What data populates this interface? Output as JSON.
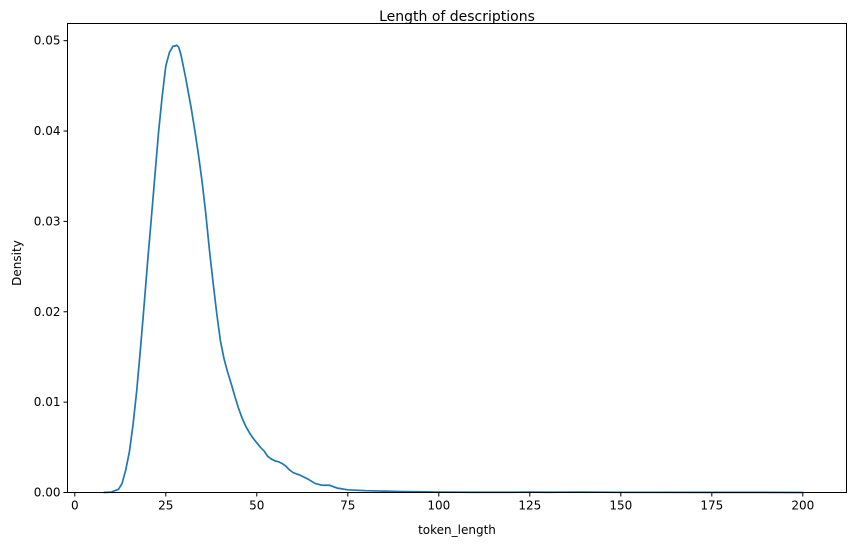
{
  "chart_data": {
    "type": "line",
    "title": "Length of descriptions",
    "xlabel": "token_length",
    "ylabel": "Density",
    "xlim": [
      -2,
      212
    ],
    "ylim": [
      0,
      0.0519
    ],
    "xticks": [
      0,
      25,
      50,
      75,
      100,
      125,
      150,
      175,
      200
    ],
    "xtick_labels": [
      "0",
      "25",
      "50",
      "75",
      "100",
      "125",
      "150",
      "175",
      "200"
    ],
    "yticks": [
      0,
      0.01,
      0.02,
      0.03,
      0.04,
      0.05
    ],
    "ytick_labels": [
      "0.00",
      "0.01",
      "0.02",
      "0.03",
      "0.04",
      "0.05"
    ],
    "grid": false,
    "line_color": "#1f77b4",
    "series": [
      {
        "x": [
          8,
          10,
          12,
          13,
          14,
          15,
          16,
          17,
          18,
          19,
          20,
          21,
          22,
          23,
          24,
          25,
          26,
          27,
          27.5,
          28,
          28.5,
          29,
          29.5,
          30,
          30.5,
          31,
          32,
          33,
          34,
          35,
          36,
          37,
          38,
          38.5,
          39,
          40,
          41,
          42,
          43,
          44,
          45,
          46,
          47,
          48,
          49,
          50,
          51,
          52,
          53,
          54,
          55,
          56,
          57,
          58,
          59,
          60,
          62,
          64,
          66,
          68,
          70,
          72,
          75,
          80,
          85,
          90,
          95,
          100,
          110,
          120,
          125,
          130,
          140,
          150,
          160,
          170,
          180,
          190,
          200
        ],
        "y": [
          0.0,
          5e-05,
          0.00035,
          0.001,
          0.0025,
          0.0045,
          0.0075,
          0.0112,
          0.0157,
          0.0205,
          0.0255,
          0.0302,
          0.035,
          0.0398,
          0.0438,
          0.0472,
          0.0487,
          0.0494,
          0.0494,
          0.0495,
          0.0493,
          0.0487,
          0.0478,
          0.0468,
          0.0458,
          0.0447,
          0.0425,
          0.04,
          0.0373,
          0.0343,
          0.0308,
          0.0268,
          0.0232,
          0.0215,
          0.0198,
          0.0168,
          0.0148,
          0.0133,
          0.012,
          0.0106,
          0.0093,
          0.0082,
          0.0073,
          0.0066,
          0.006,
          0.0055,
          0.005,
          0.0046,
          0.004,
          0.0037,
          0.0035,
          0.0034,
          0.0032,
          0.0029,
          0.0025,
          0.0022,
          0.0019,
          0.0015,
          0.001,
          0.0008,
          0.0008,
          0.0005,
          0.0003,
          0.0002,
          0.00015,
          0.0001,
          8e-05,
          5e-05,
          3e-05,
          3e-05,
          5e-05,
          3e-05,
          5e-05,
          2e-05,
          2e-05,
          1e-05,
          1e-05,
          1e-05,
          0.0
        ]
      }
    ]
  }
}
